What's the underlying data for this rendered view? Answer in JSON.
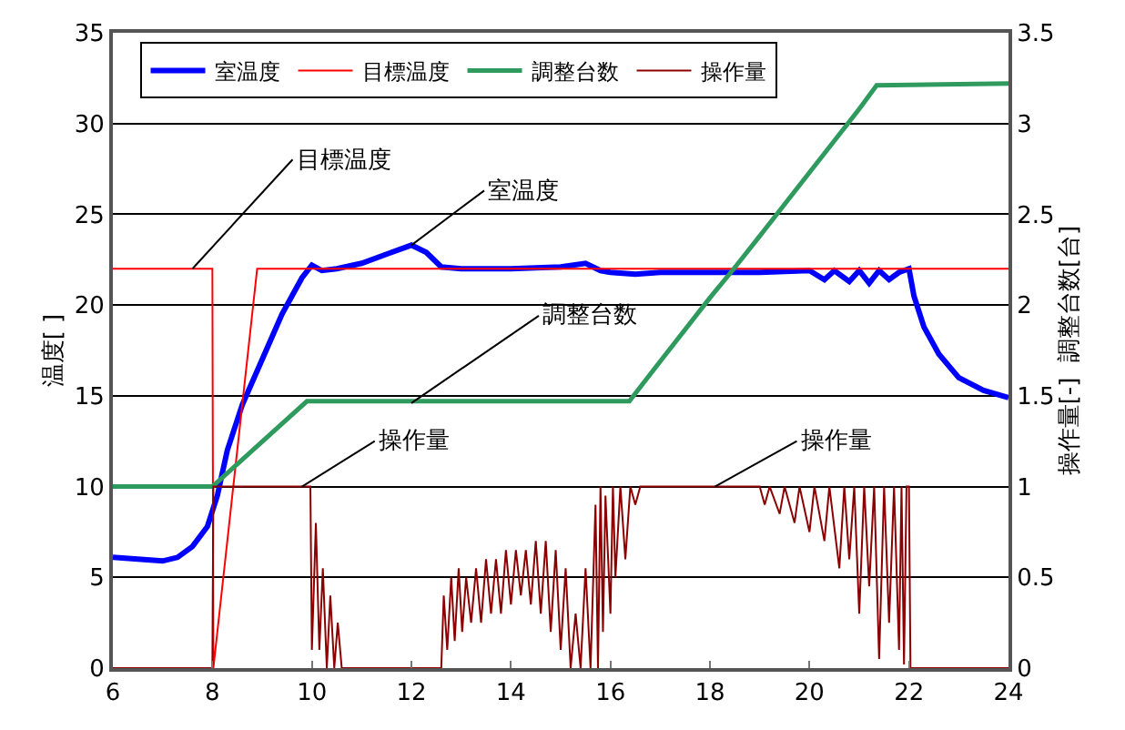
{
  "chart_data": {
    "type": "line",
    "ylabel": "温度[ ]",
    "y2label": "操作量[-]  調整台数[台]",
    "xlim": [
      6,
      24
    ],
    "xticks": [
      6,
      8,
      10,
      12,
      14,
      16,
      18,
      20,
      22,
      24
    ],
    "ylim": [
      0,
      35
    ],
    "yticks": [
      0,
      5,
      10,
      15,
      20,
      25,
      30,
      35
    ],
    "y2lim": [
      0,
      3.5
    ],
    "y2ticks": [
      0,
      0.5,
      1,
      1.5,
      2,
      2.5,
      3,
      3.5
    ],
    "grid": "y",
    "legend": "top left",
    "marker": "none",
    "line_style": "solid",
    "series": [
      {
        "name": "室温度",
        "color": "#0000ff",
        "x": [
          6,
          6.5,
          7,
          7.3,
          7.6,
          7.9,
          8.1,
          8.3,
          8.6,
          9,
          9.4,
          9.8,
          10,
          10.2,
          10.5,
          11,
          11.5,
          12,
          12.3,
          12.6,
          13,
          14,
          15,
          15.5,
          15.8,
          16,
          16.5,
          17,
          18,
          19,
          20,
          20.3,
          20.5,
          20.8,
          21,
          21.2,
          21.4,
          21.6,
          21.8,
          22,
          22.1,
          22.3,
          22.6,
          23,
          23.5,
          24
        ],
        "values": [
          6.1,
          6,
          5.9,
          6.1,
          6.7,
          7.8,
          9.5,
          12,
          14.5,
          17,
          19.5,
          21.5,
          22.2,
          21.9,
          22,
          22.3,
          22.8,
          23.3,
          22.9,
          22.1,
          22,
          22,
          22.1,
          22.3,
          21.9,
          21.8,
          21.7,
          21.8,
          21.8,
          21.8,
          21.9,
          21.4,
          21.9,
          21.3,
          21.9,
          21.2,
          21.9,
          21.4,
          21.8,
          22,
          20.5,
          18.8,
          17.3,
          16,
          15.3,
          14.9
        ]
      },
      {
        "name": "目標温度",
        "color": "#ff0000",
        "x": [
          6,
          8,
          8.02,
          8.9,
          24
        ],
        "values": [
          22,
          22,
          0,
          22,
          22
        ]
      },
      {
        "name": "調整台数",
        "color": "#2e9a5e",
        "axis": "y2",
        "x": [
          6,
          8,
          9.9,
          16.38,
          17,
          18,
          18.48,
          19,
          20,
          21,
          21.35,
          24
        ],
        "values": [
          1,
          1,
          1.47,
          1.47,
          1.69,
          2.04,
          2.2,
          2.38,
          2.73,
          3.08,
          3.21,
          3.22
        ]
      },
      {
        "name": "操作量",
        "color": "#8b0000",
        "axis": "y2",
        "x": [
          6,
          8.0,
          8.02,
          9.97,
          10.0,
          10.08,
          10.15,
          10.22,
          10.3,
          10.37,
          10.45,
          10.52,
          10.6,
          12.6,
          12.65,
          12.72,
          12.8,
          12.87,
          12.95,
          13.02,
          13.1,
          13.2,
          13.3,
          13.4,
          13.5,
          13.6,
          13.7,
          13.8,
          13.9,
          14.0,
          14.1,
          14.2,
          14.3,
          14.4,
          14.5,
          14.6,
          14.7,
          14.8,
          14.9,
          15.0,
          15.1,
          15.2,
          15.3,
          15.4,
          15.5,
          15.6,
          15.7,
          15.75,
          15.8,
          15.85,
          15.9,
          16.0,
          16.05,
          16.1,
          16.2,
          16.3,
          16.4,
          16.5,
          16.6,
          19.0,
          19.1,
          19.2,
          19.4,
          19.5,
          19.7,
          19.8,
          20.0,
          20.1,
          20.3,
          20.4,
          20.6,
          20.7,
          20.8,
          20.9,
          21.0,
          21.1,
          21.2,
          21.3,
          21.4,
          21.5,
          21.6,
          21.7,
          21.8,
          21.85,
          21.9,
          21.95,
          22.0,
          22.03,
          24
        ],
        "values": [
          0,
          0,
          1,
          1,
          0.1,
          0.8,
          0.1,
          0.55,
          0,
          0.4,
          0,
          0.25,
          0,
          0,
          0.4,
          0.1,
          0.5,
          0.15,
          0.55,
          0.2,
          0.5,
          0.25,
          0.55,
          0.25,
          0.6,
          0.3,
          0.6,
          0.3,
          0.65,
          0.35,
          0.65,
          0.4,
          0.65,
          0.35,
          0.7,
          0.3,
          0.7,
          0.2,
          0.65,
          0.1,
          0.55,
          0,
          0.3,
          0,
          0.55,
          0,
          0.9,
          0,
          1,
          0.2,
          0.95,
          0.3,
          1,
          0.5,
          1,
          0.6,
          1,
          0.9,
          1,
          1,
          0.9,
          1,
          0.85,
          1,
          0.8,
          1,
          0.75,
          1,
          0.7,
          1,
          0.55,
          1,
          0.6,
          1,
          0.3,
          1,
          0.45,
          1,
          0.05,
          1,
          0.25,
          1,
          0.1,
          1,
          0.02,
          1,
          1,
          0,
          0
        ]
      }
    ],
    "annotations": [
      {
        "text": "目標温度",
        "x": 7.6,
        "y": 22
      },
      {
        "text": "室温度",
        "x": 12,
        "y": 23.3
      },
      {
        "text": "調整台数",
        "x": 12.0,
        "y": 14.6
      },
      {
        "text": "操作量",
        "x": 9.8,
        "y": 10
      },
      {
        "text": "操作量",
        "x": 18.1,
        "y": 10
      }
    ]
  }
}
